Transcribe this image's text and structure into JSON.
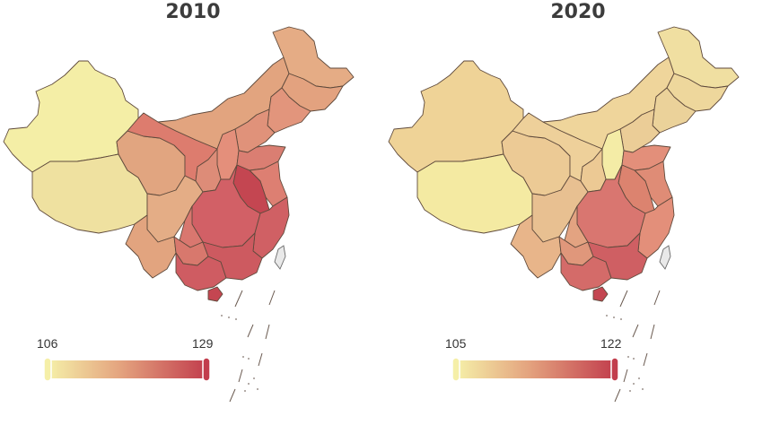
{
  "maps": [
    {
      "title": "2010",
      "scale": {
        "min": "106",
        "max": "129"
      },
      "colors": {
        "xinjiang": "#f4eea6",
        "tibet": "#efe1a0",
        "qinghai": "#e1a580",
        "gansu": "#dd7c6e",
        "inner_mongolia": "#e2a47f",
        "heilongjiang": "#e5ac85",
        "jilin": "#e3a27f",
        "liaoning": "#e2957c",
        "north_china": "#e0927a",
        "shanxi": "#e48f7b",
        "shaanxi": "#dd8c78",
        "sichuan": "#e4ad86",
        "yunnan": "#e2a47f",
        "chongqing": "#d9776f",
        "guizhou": "#d8786d",
        "central": "#d26066",
        "anhui": "#c44651",
        "jiangsu": "#dd7f72",
        "shandong": "#da7e72",
        "southeast": "#d06064",
        "guangxi": "#cf5c62",
        "guangdong": "#cd5a60",
        "hainan": "#c44651"
      }
    },
    {
      "title": "2020",
      "scale": {
        "min": "105",
        "max": "122"
      },
      "colors": {
        "xinjiang": "#efd397",
        "tibet": "#f4eaa2",
        "qinghai": "#ecca95",
        "gansu": "#eed09a",
        "inner_mongolia": "#efd59b",
        "heilongjiang": "#f0dfa1",
        "jilin": "#eed79c",
        "liaoning": "#ebd29a",
        "north_china": "#ebcd97",
        "shanxi": "#f4eca6",
        "shaanxi": "#ecc994",
        "sichuan": "#e8c091",
        "yunnan": "#e8b58a",
        "chongqing": "#e3a381",
        "guizhou": "#e0977b",
        "central": "#d97670",
        "anhui": "#dc836f",
        "jiangsu": "#df8c76",
        "shandong": "#e38f7a",
        "southeast": "#e38f7a",
        "guangxi": "#d46b69",
        "guangdong": "#cf5f63",
        "hainan": "#c44651"
      }
    }
  ],
  "legend_colors": {
    "low": "#f5efa8",
    "mid": "#e4a47f",
    "high": "#c23e4d"
  }
}
